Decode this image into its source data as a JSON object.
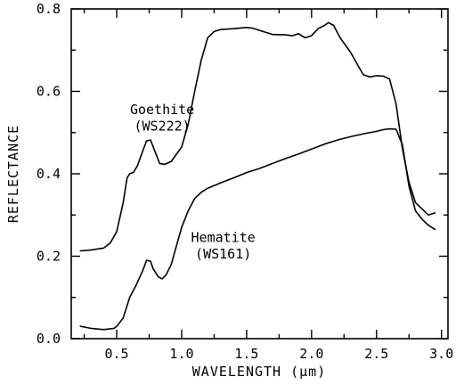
{
  "chart_data": {
    "type": "line",
    "title": "",
    "xlabel": "WAVELENGTH (μm)",
    "ylabel": "REFLECTANCE",
    "xlim": [
      0.15,
      3.05
    ],
    "ylim": [
      0.0,
      0.8
    ],
    "x_ticks": [
      0.5,
      1.0,
      1.5,
      2.0,
      2.5,
      3.0
    ],
    "x_tick_labels": [
      "0.5",
      "1.0",
      "1.5",
      "2.0",
      "2.5",
      "3.0"
    ],
    "y_ticks": [
      0.0,
      0.2,
      0.4,
      0.6,
      0.8
    ],
    "y_tick_labels": [
      "0.0",
      "0.2",
      "0.4",
      "0.6",
      "0.8"
    ],
    "grid": false,
    "legend": "none",
    "series": [
      {
        "x": [
          0.22,
          0.3,
          0.4,
          0.45,
          0.5,
          0.55,
          0.58,
          0.6,
          0.63,
          0.66,
          0.7,
          0.73,
          0.76,
          0.8,
          0.83,
          0.87,
          0.92,
          1.0,
          1.05,
          1.1,
          1.15,
          1.2,
          1.25,
          1.3,
          1.4,
          1.5,
          1.55,
          1.6,
          1.7,
          1.8,
          1.85,
          1.9,
          1.95,
          2.0,
          2.05,
          2.1,
          2.13,
          2.17,
          2.22,
          2.3,
          2.38,
          2.4,
          2.45,
          2.5,
          2.55,
          2.6,
          2.65,
          2.7,
          2.75,
          2.8,
          2.85,
          2.9,
          2.95
        ],
        "y": [
          0.213,
          0.215,
          0.22,
          0.232,
          0.26,
          0.33,
          0.39,
          0.4,
          0.404,
          0.42,
          0.455,
          0.48,
          0.482,
          0.45,
          0.425,
          0.423,
          0.43,
          0.465,
          0.52,
          0.6,
          0.675,
          0.73,
          0.745,
          0.75,
          0.752,
          0.755,
          0.753,
          0.748,
          0.738,
          0.737,
          0.735,
          0.74,
          0.73,
          0.735,
          0.752,
          0.76,
          0.767,
          0.76,
          0.73,
          0.695,
          0.65,
          0.64,
          0.635,
          0.638,
          0.637,
          0.63,
          0.57,
          0.46,
          0.38,
          0.33,
          0.315,
          0.3,
          0.305
        ]
      },
      {
        "x": [
          0.22,
          0.3,
          0.4,
          0.48,
          0.5,
          0.55,
          0.6,
          0.65,
          0.7,
          0.73,
          0.76,
          0.78,
          0.82,
          0.85,
          0.88,
          0.92,
          0.96,
          1.0,
          1.05,
          1.1,
          1.15,
          1.2,
          1.3,
          1.4,
          1.5,
          1.6,
          1.7,
          1.8,
          1.9,
          2.0,
          2.1,
          2.2,
          2.3,
          2.4,
          2.5,
          2.55,
          2.6,
          2.65,
          2.7,
          2.75,
          2.8,
          2.85,
          2.9,
          2.95
        ],
        "y": [
          0.03,
          0.025,
          0.022,
          0.025,
          0.03,
          0.05,
          0.1,
          0.13,
          0.165,
          0.19,
          0.188,
          0.17,
          0.15,
          0.145,
          0.155,
          0.18,
          0.225,
          0.27,
          0.31,
          0.34,
          0.355,
          0.365,
          0.378,
          0.39,
          0.403,
          0.413,
          0.425,
          0.437,
          0.448,
          0.46,
          0.472,
          0.482,
          0.49,
          0.497,
          0.503,
          0.507,
          0.509,
          0.508,
          0.47,
          0.37,
          0.31,
          0.29,
          0.275,
          0.265
        ]
      }
    ],
    "annotations": [
      {
        "text": "Goethite",
        "x": 0.85,
        "y": 0.545
      },
      {
        "text": "(WS222)",
        "x": 0.85,
        "y": 0.505
      },
      {
        "text": "Hematite",
        "x": 1.32,
        "y": 0.235
      },
      {
        "text": "(WS161)",
        "x": 1.32,
        "y": 0.195
      }
    ]
  }
}
